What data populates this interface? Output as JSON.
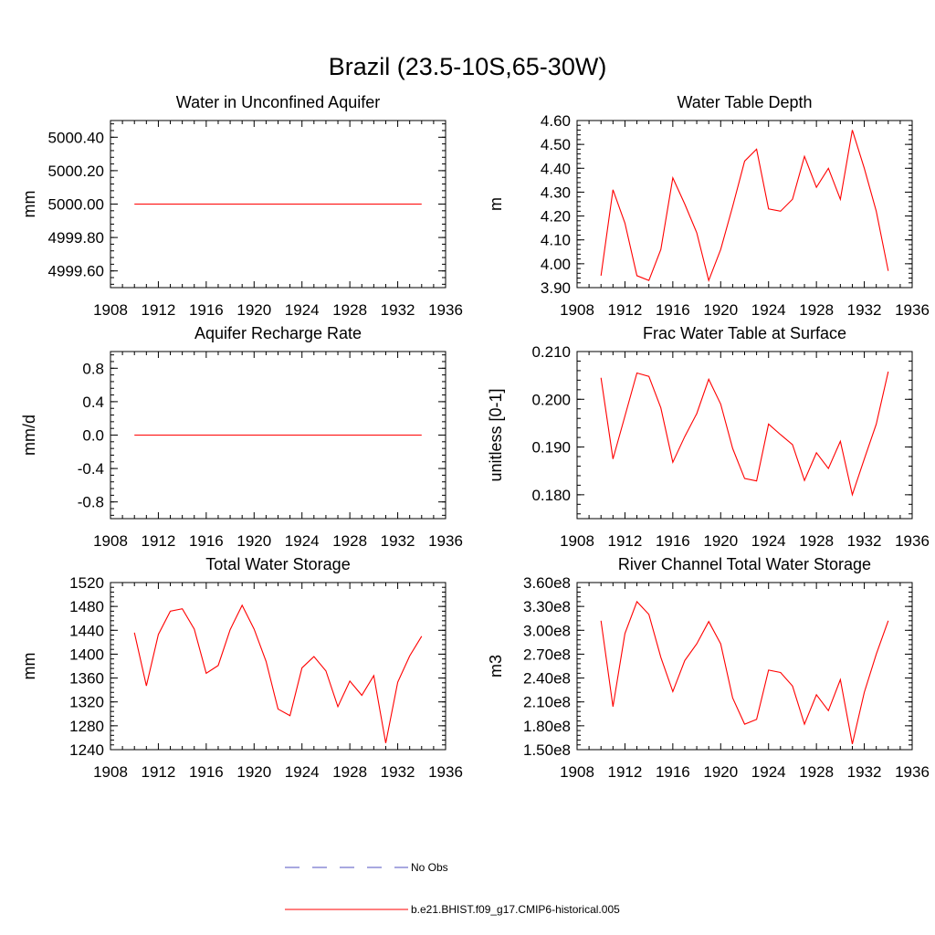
{
  "title": "Brazil (23.5-10S,65-30W)",
  "legend": [
    {
      "label": "No Obs",
      "color": "#5050c0",
      "dash": "dashed"
    },
    {
      "label": "b.e21.BHIST.f09_g17.CMIP6-historical.005",
      "color": "#ff0000",
      "dash": "solid"
    }
  ],
  "chart_data": [
    {
      "type": "line",
      "title": "Water in Unconfined Aquifer",
      "ylabel": "mm",
      "xlim": [
        1908,
        1936
      ],
      "ylim": [
        4999.5,
        5000.5
      ],
      "xticks": [
        1908,
        1912,
        1916,
        1920,
        1924,
        1928,
        1932,
        1936
      ],
      "yticks": [
        4999.6,
        4999.8,
        5000.0,
        5000.2,
        5000.4
      ],
      "ytick_labels": [
        "4999.60",
        "4999.80",
        "5000.00",
        "5000.20",
        "5000.40"
      ],
      "x": [
        1910,
        1911,
        1912,
        1913,
        1914,
        1915,
        1916,
        1917,
        1918,
        1919,
        1920,
        1921,
        1922,
        1923,
        1924,
        1925,
        1926,
        1927,
        1928,
        1929,
        1930,
        1931,
        1932,
        1933,
        1934
      ],
      "series": [
        {
          "name": "b.e21.BHIST.f09_g17.CMIP6-historical.005",
          "color": "#ff0000",
          "values": [
            5000,
            5000,
            5000,
            5000,
            5000,
            5000,
            5000,
            5000,
            5000,
            5000,
            5000,
            5000,
            5000,
            5000,
            5000,
            5000,
            5000,
            5000,
            5000,
            5000,
            5000,
            5000,
            5000,
            5000,
            5000
          ]
        }
      ]
    },
    {
      "type": "line",
      "title": "Water Table Depth",
      "ylabel": "m",
      "xlim": [
        1908,
        1936
      ],
      "ylim": [
        3.9,
        4.6
      ],
      "xticks": [
        1908,
        1912,
        1916,
        1920,
        1924,
        1928,
        1932,
        1936
      ],
      "yticks": [
        3.9,
        4.0,
        4.1,
        4.2,
        4.3,
        4.4,
        4.5,
        4.6
      ],
      "ytick_labels": [
        "3.90",
        "4.00",
        "4.10",
        "4.20",
        "4.30",
        "4.40",
        "4.50",
        "4.60"
      ],
      "x": [
        1910,
        1911,
        1912,
        1913,
        1914,
        1915,
        1916,
        1917,
        1918,
        1919,
        1920,
        1921,
        1922,
        1923,
        1924,
        1925,
        1926,
        1927,
        1928,
        1929,
        1930,
        1931,
        1932,
        1933,
        1934
      ],
      "series": [
        {
          "name": "b.e21.BHIST.f09_g17.CMIP6-historical.005",
          "color": "#ff0000",
          "values": [
            3.95,
            4.31,
            4.17,
            3.95,
            3.93,
            4.06,
            4.36,
            4.25,
            4.13,
            3.93,
            4.06,
            4.24,
            4.43,
            4.48,
            4.23,
            4.22,
            4.27,
            4.45,
            4.32,
            4.4,
            4.27,
            4.56,
            4.4,
            4.22,
            3.97
          ]
        }
      ]
    },
    {
      "type": "line",
      "title": "Aquifer Recharge Rate",
      "ylabel": "mm/d",
      "xlim": [
        1908,
        1936
      ],
      "ylim": [
        -1.0,
        1.0
      ],
      "xticks": [
        1908,
        1912,
        1916,
        1920,
        1924,
        1928,
        1932,
        1936
      ],
      "yticks": [
        -0.8,
        -0.4,
        0.0,
        0.4,
        0.8
      ],
      "ytick_labels": [
        "-0.8",
        "-0.4",
        "0.0",
        "0.4",
        "0.8"
      ],
      "x": [
        1910,
        1911,
        1912,
        1913,
        1914,
        1915,
        1916,
        1917,
        1918,
        1919,
        1920,
        1921,
        1922,
        1923,
        1924,
        1925,
        1926,
        1927,
        1928,
        1929,
        1930,
        1931,
        1932,
        1933,
        1934
      ],
      "series": [
        {
          "name": "b.e21.BHIST.f09_g17.CMIP6-historical.005",
          "color": "#ff0000",
          "values": [
            0,
            0,
            0,
            0,
            0,
            0,
            0,
            0,
            0,
            0,
            0,
            0,
            0,
            0,
            0,
            0,
            0,
            0,
            0,
            0,
            0,
            0,
            0,
            0,
            0
          ]
        }
      ]
    },
    {
      "type": "line",
      "title": "Frac Water Table at Surface",
      "ylabel": "unitless [0-1]",
      "xlim": [
        1908,
        1936
      ],
      "ylim": [
        0.175,
        0.21
      ],
      "xticks": [
        1908,
        1912,
        1916,
        1920,
        1924,
        1928,
        1932,
        1936
      ],
      "yticks": [
        0.18,
        0.19,
        0.2,
        0.21
      ],
      "ytick_labels": [
        "0.180",
        "0.190",
        "0.200",
        "0.210"
      ],
      "x": [
        1910,
        1911,
        1912,
        1913,
        1914,
        1915,
        1916,
        1917,
        1918,
        1919,
        1920,
        1921,
        1922,
        1923,
        1924,
        1925,
        1926,
        1927,
        1928,
        1929,
        1930,
        1931,
        1932,
        1933,
        1934
      ],
      "series": [
        {
          "name": "b.e21.BHIST.f09_g17.CMIP6-historical.005",
          "color": "#ff0000",
          "values": [
            0.2045,
            0.1875,
            0.1965,
            0.2055,
            0.2048,
            0.1982,
            0.1868,
            0.1922,
            0.197,
            0.2042,
            0.199,
            0.1897,
            0.1834,
            0.1829,
            0.1948,
            0.1926,
            0.1905,
            0.183,
            0.1888,
            0.1855,
            0.1912,
            0.18,
            0.1875,
            0.1948,
            0.2058
          ]
        }
      ]
    },
    {
      "type": "line",
      "title": "Total Water Storage",
      "ylabel": "mm",
      "xlim": [
        1908,
        1936
      ],
      "ylim": [
        1240,
        1520
      ],
      "xticks": [
        1908,
        1912,
        1916,
        1920,
        1924,
        1928,
        1932,
        1936
      ],
      "yticks": [
        1240,
        1280,
        1320,
        1360,
        1400,
        1440,
        1480,
        1520
      ],
      "ytick_labels": [
        "1240",
        "1280",
        "1320",
        "1360",
        "1400",
        "1440",
        "1480",
        "1520"
      ],
      "x": [
        1910,
        1911,
        1912,
        1913,
        1914,
        1915,
        1916,
        1917,
        1918,
        1919,
        1920,
        1921,
        1922,
        1923,
        1924,
        1925,
        1926,
        1927,
        1928,
        1929,
        1930,
        1931,
        1932,
        1933,
        1934
      ],
      "series": [
        {
          "name": "b.e21.BHIST.f09_g17.CMIP6-historical.005",
          "color": "#ff0000",
          "values": [
            1436,
            1347,
            1433,
            1472,
            1476,
            1442,
            1368,
            1381,
            1441,
            1482,
            1442,
            1388,
            1308,
            1297,
            1377,
            1396,
            1372,
            1312,
            1355,
            1331,
            1364,
            1251,
            1353,
            1397,
            1430
          ]
        }
      ]
    },
    {
      "type": "line",
      "title": "River Channel Total Water Storage",
      "ylabel": "m3",
      "xlim": [
        1908,
        1936
      ],
      "ylim": [
        150000000,
        360000000
      ],
      "xticks": [
        1908,
        1912,
        1916,
        1920,
        1924,
        1928,
        1932,
        1936
      ],
      "yticks": [
        150000000,
        180000000,
        210000000,
        240000000,
        270000000,
        300000000,
        330000000,
        360000000
      ],
      "ytick_labels": [
        "1.50e8",
        "1.80e8",
        "2.10e8",
        "2.40e8",
        "2.70e8",
        "3.00e8",
        "3.30e8",
        "3.60e8"
      ],
      "x": [
        1910,
        1911,
        1912,
        1913,
        1914,
        1915,
        1916,
        1917,
        1918,
        1919,
        1920,
        1921,
        1922,
        1923,
        1924,
        1925,
        1926,
        1927,
        1928,
        1929,
        1930,
        1931,
        1932,
        1933,
        1934
      ],
      "series": [
        {
          "name": "b.e21.BHIST.f09_g17.CMIP6-historical.005",
          "color": "#ff0000",
          "values": [
            312000000,
            204000000,
            296000000,
            336000000,
            320000000,
            266000000,
            223000000,
            262000000,
            283000000,
            311000000,
            283000000,
            215000000,
            182000000,
            188000000,
            250000000,
            247000000,
            230000000,
            182000000,
            219000000,
            199000000,
            238000000,
            157000000,
            222000000,
            270000000,
            312000000
          ]
        }
      ]
    }
  ]
}
